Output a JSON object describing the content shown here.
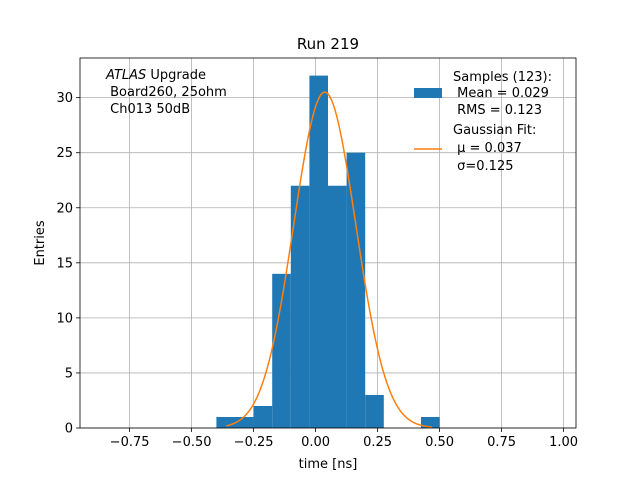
{
  "chart_data": {
    "type": "bar",
    "title": "Run 219",
    "xlabel": "time [ns]",
    "ylabel": "Entries",
    "xlim": [
      -0.95,
      1.05
    ],
    "ylim": [
      0,
      33.6
    ],
    "grid": true,
    "xticks": [
      -0.75,
      -0.5,
      -0.25,
      0.0,
      0.25,
      0.5,
      0.75,
      1.0
    ],
    "xtick_labels": [
      "−0.75",
      "−0.50",
      "−0.25",
      "0.00",
      "0.25",
      "0.50",
      "0.75",
      "1.00"
    ],
    "yticks": [
      0,
      5,
      10,
      15,
      20,
      25,
      30
    ],
    "ytick_labels": [
      "0",
      "5",
      "10",
      "15",
      "20",
      "25",
      "30"
    ],
    "histogram": {
      "bin_edges": [
        -0.4,
        -0.325,
        -0.25,
        -0.175,
        -0.1,
        -0.025,
        0.05,
        0.125,
        0.2,
        0.275,
        0.35,
        0.425,
        0.5
      ],
      "counts": [
        1,
        1,
        2,
        14,
        22,
        32,
        22,
        25,
        3,
        0,
        0,
        1
      ],
      "color": "#1f77b4"
    },
    "gaussian_fit": {
      "mu": 0.037,
      "sigma": 0.125,
      "amplitude": 30.5,
      "x_range": [
        -0.36,
        0.47
      ],
      "color": "#ff7f0e"
    },
    "annotation": {
      "line1_italic": "ATLAS",
      "line1_rest": " Upgrade",
      "line2": " Board260, 25ohm",
      "line3": " Ch013 50dB"
    },
    "legend": {
      "position": "top-right",
      "entries": [
        {
          "kind": "patch",
          "color": "#1f77b4",
          "lines": [
            "Samples (123):",
            " Mean = 0.029",
            " RMS = 0.123"
          ]
        },
        {
          "kind": "line",
          "color": "#ff7f0e",
          "lines": [
            "Gaussian Fit:",
            " μ = 0.037",
            " σ=0.125"
          ]
        }
      ]
    }
  }
}
